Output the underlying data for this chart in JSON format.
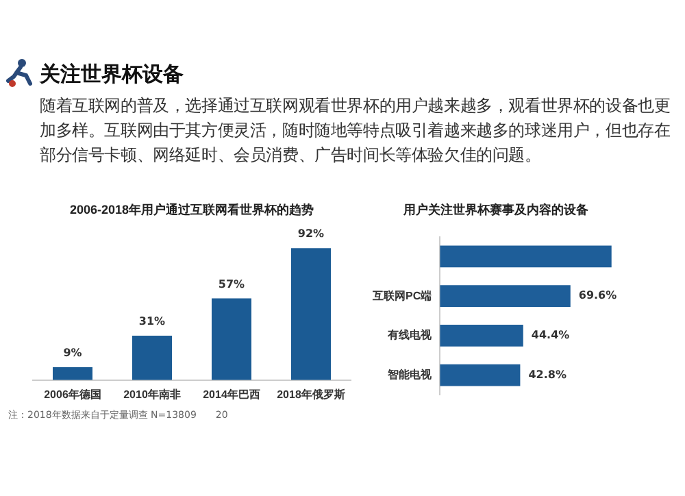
{
  "chart_data": [
    {
      "type": "other",
      "title": "关注世界杯设备",
      "subtitle": "随着互联网的普及，选择通过互联网观看世界杯的用户越来越多，观看世界杯的设备也更加多样。互联网由于其方便灵活，随时随地等特点吸引着越来越多的球迷用户，但也存在部分信号卡顿、网络延时、会员消费、广告时间长等体验欠佳的问题。"
    },
    {
      "type": "bar",
      "title": "2006-2018年用户通过互联网看世界杯的趋势",
      "categories": [
        "2006年德国",
        "2010年南非",
        "2014年巴西",
        "2018年俄罗斯"
      ],
      "values": [
        9,
        31,
        57,
        92
      ],
      "value_labels": [
        "9%",
        "31%",
        "57%",
        "92%"
      ],
      "color": "#1b5b94",
      "annotations": [
        "注：2018年数据来自于定量调查 N=13809",
        "20"
      ]
    },
    {
      "type": "bar",
      "orientation": "horizontal",
      "title": "用户关注世界杯赛事及内容的设备",
      "categories": [
        null,
        "互联网PC端",
        "有线电视",
        "智能电视"
      ],
      "values": [
        91.5,
        69.6,
        44.4,
        42.8
      ],
      "value_labels": [
        null,
        "69.6%",
        "44.4%",
        "42.8%"
      ],
      "color": "#1e5e99"
    }
  ]
}
